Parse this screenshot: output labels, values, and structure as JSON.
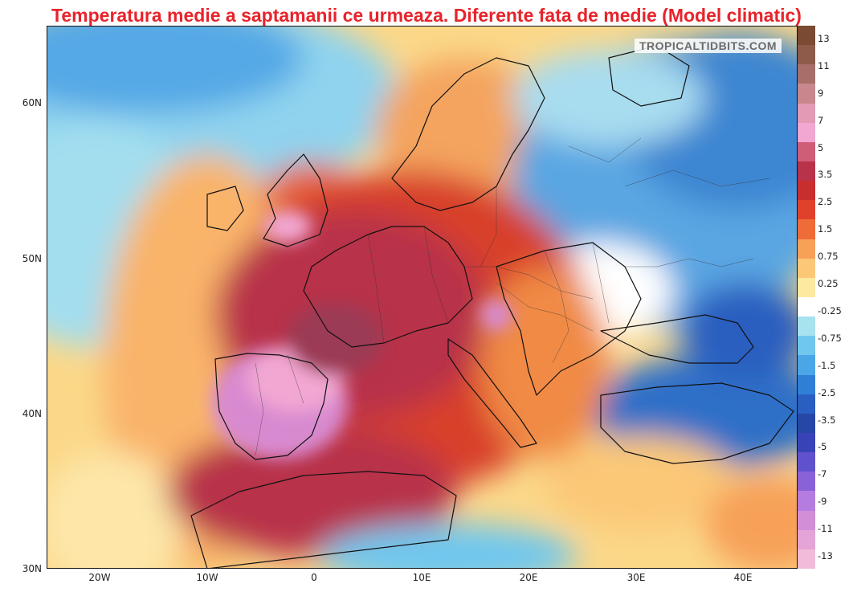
{
  "title": "Temperatura medie a saptamanii ce urmeaza. Diferente fata de medie (Model climatic)",
  "watermark": "TROPICALTIDBITS.COM",
  "axes": {
    "lat_ticks": [
      "60N",
      "50N",
      "40N",
      "30N"
    ],
    "lon_ticks": [
      "20W",
      "10W",
      "0",
      "10E",
      "20E",
      "30E",
      "40E"
    ]
  },
  "colorbar": {
    "labels": [
      "13",
      "11",
      "9",
      "7",
      "5",
      "3.5",
      "2.5",
      "1.5",
      "0.75",
      "0.25",
      "-0.25",
      "-0.75",
      "-1.5",
      "-2.5",
      "-3.5",
      "-5",
      "-7",
      "-9",
      "-11",
      "-13"
    ],
    "colors": [
      "#7a4a32",
      "#8e5a4a",
      "#a86e6a",
      "#c8878c",
      "#e39bb5",
      "#f2a7d2",
      "#d05d77",
      "#b8334a",
      "#c92e2e",
      "#e1412b",
      "#ef6b37",
      "#f7a058",
      "#fbc877",
      "#fde9a0",
      "#ffffff",
      "#a7e2ef",
      "#70c7ee",
      "#4ba6e8",
      "#2f7fd6",
      "#2a5ec0",
      "#2747a6",
      "#3943b8",
      "#6052cc",
      "#8a62d8",
      "#b57ce0",
      "#d28fd8",
      "#e5a4d7",
      "#f0bcd8"
    ]
  },
  "map": {
    "region": "Europe",
    "lat_range": [
      30,
      65
    ],
    "lon_range": [
      -25,
      45
    ],
    "variable": "temperature anomaly"
  }
}
